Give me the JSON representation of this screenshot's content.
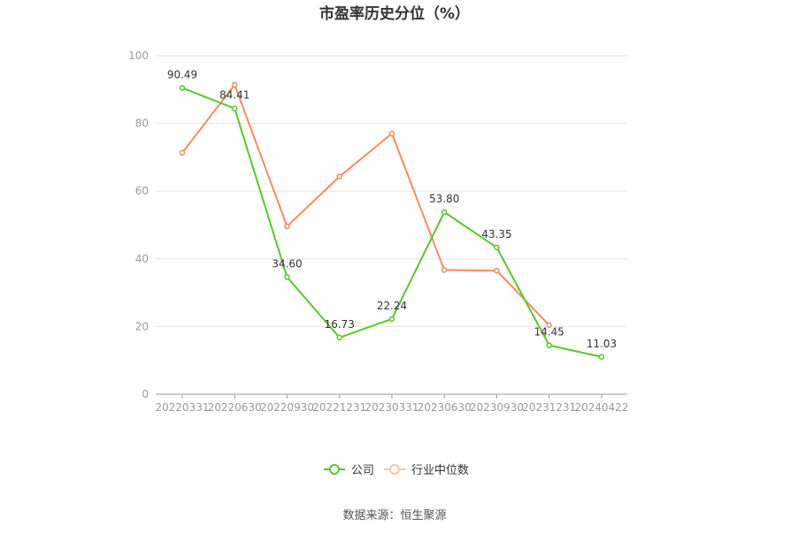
{
  "chart_data": {
    "type": "line",
    "title": "市盈率历史分位（%）",
    "categories": [
      "20220331",
      "20220630",
      "20220930",
      "20221231",
      "20230331",
      "20230630",
      "20230930",
      "20231231",
      "20240422"
    ],
    "ylim": [
      0,
      100
    ],
    "yticks": [
      0,
      20,
      40,
      60,
      80,
      100
    ],
    "grid": true,
    "legend_position": "bottom",
    "series": [
      {
        "name": "公司",
        "color": "#5cc42b",
        "values": [
          90.49,
          84.41,
          34.6,
          16.73,
          22.24,
          53.8,
          43.35,
          14.45,
          11.03
        ],
        "labels": [
          "90.49",
          "84.41",
          "34.60",
          "16.73",
          "22.24",
          "53.80",
          "43.35",
          "14.45",
          "11.03"
        ]
      },
      {
        "name": "行业中位数",
        "color": "#f28c5e",
        "values": [
          71.3,
          91.4,
          49.6,
          64.3,
          77.0,
          36.7,
          36.5,
          20.4,
          null
        ]
      }
    ],
    "source": "数据来源：恒生聚源"
  }
}
